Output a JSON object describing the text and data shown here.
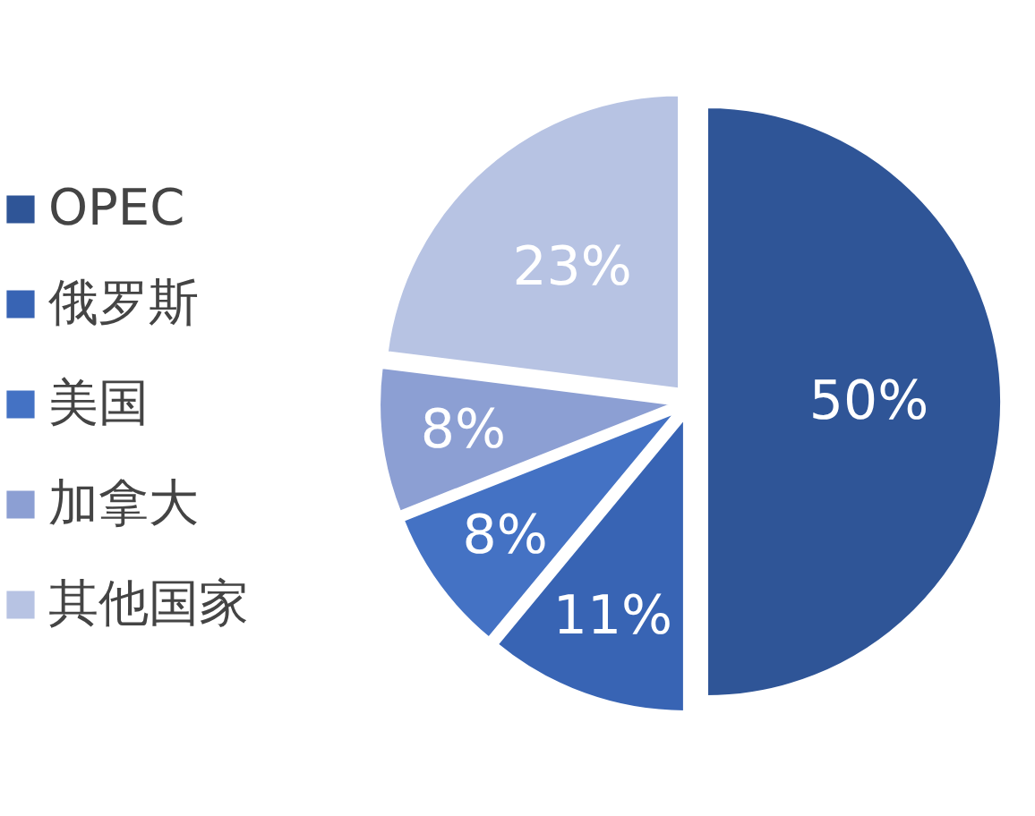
{
  "chart_data": {
    "type": "pie",
    "categories": [
      "OPEC",
      "俄罗斯",
      "美国",
      "加拿大",
      "其他国家"
    ],
    "values": [
      50,
      11,
      8,
      8,
      23
    ],
    "colors": [
      "#2f5597",
      "#3864b4",
      "#4472c4",
      "#8c9fd3",
      "#b7c3e3"
    ],
    "value_labels": [
      "50%",
      "11%",
      "8%",
      "8%",
      "23%"
    ],
    "legend": "left"
  }
}
